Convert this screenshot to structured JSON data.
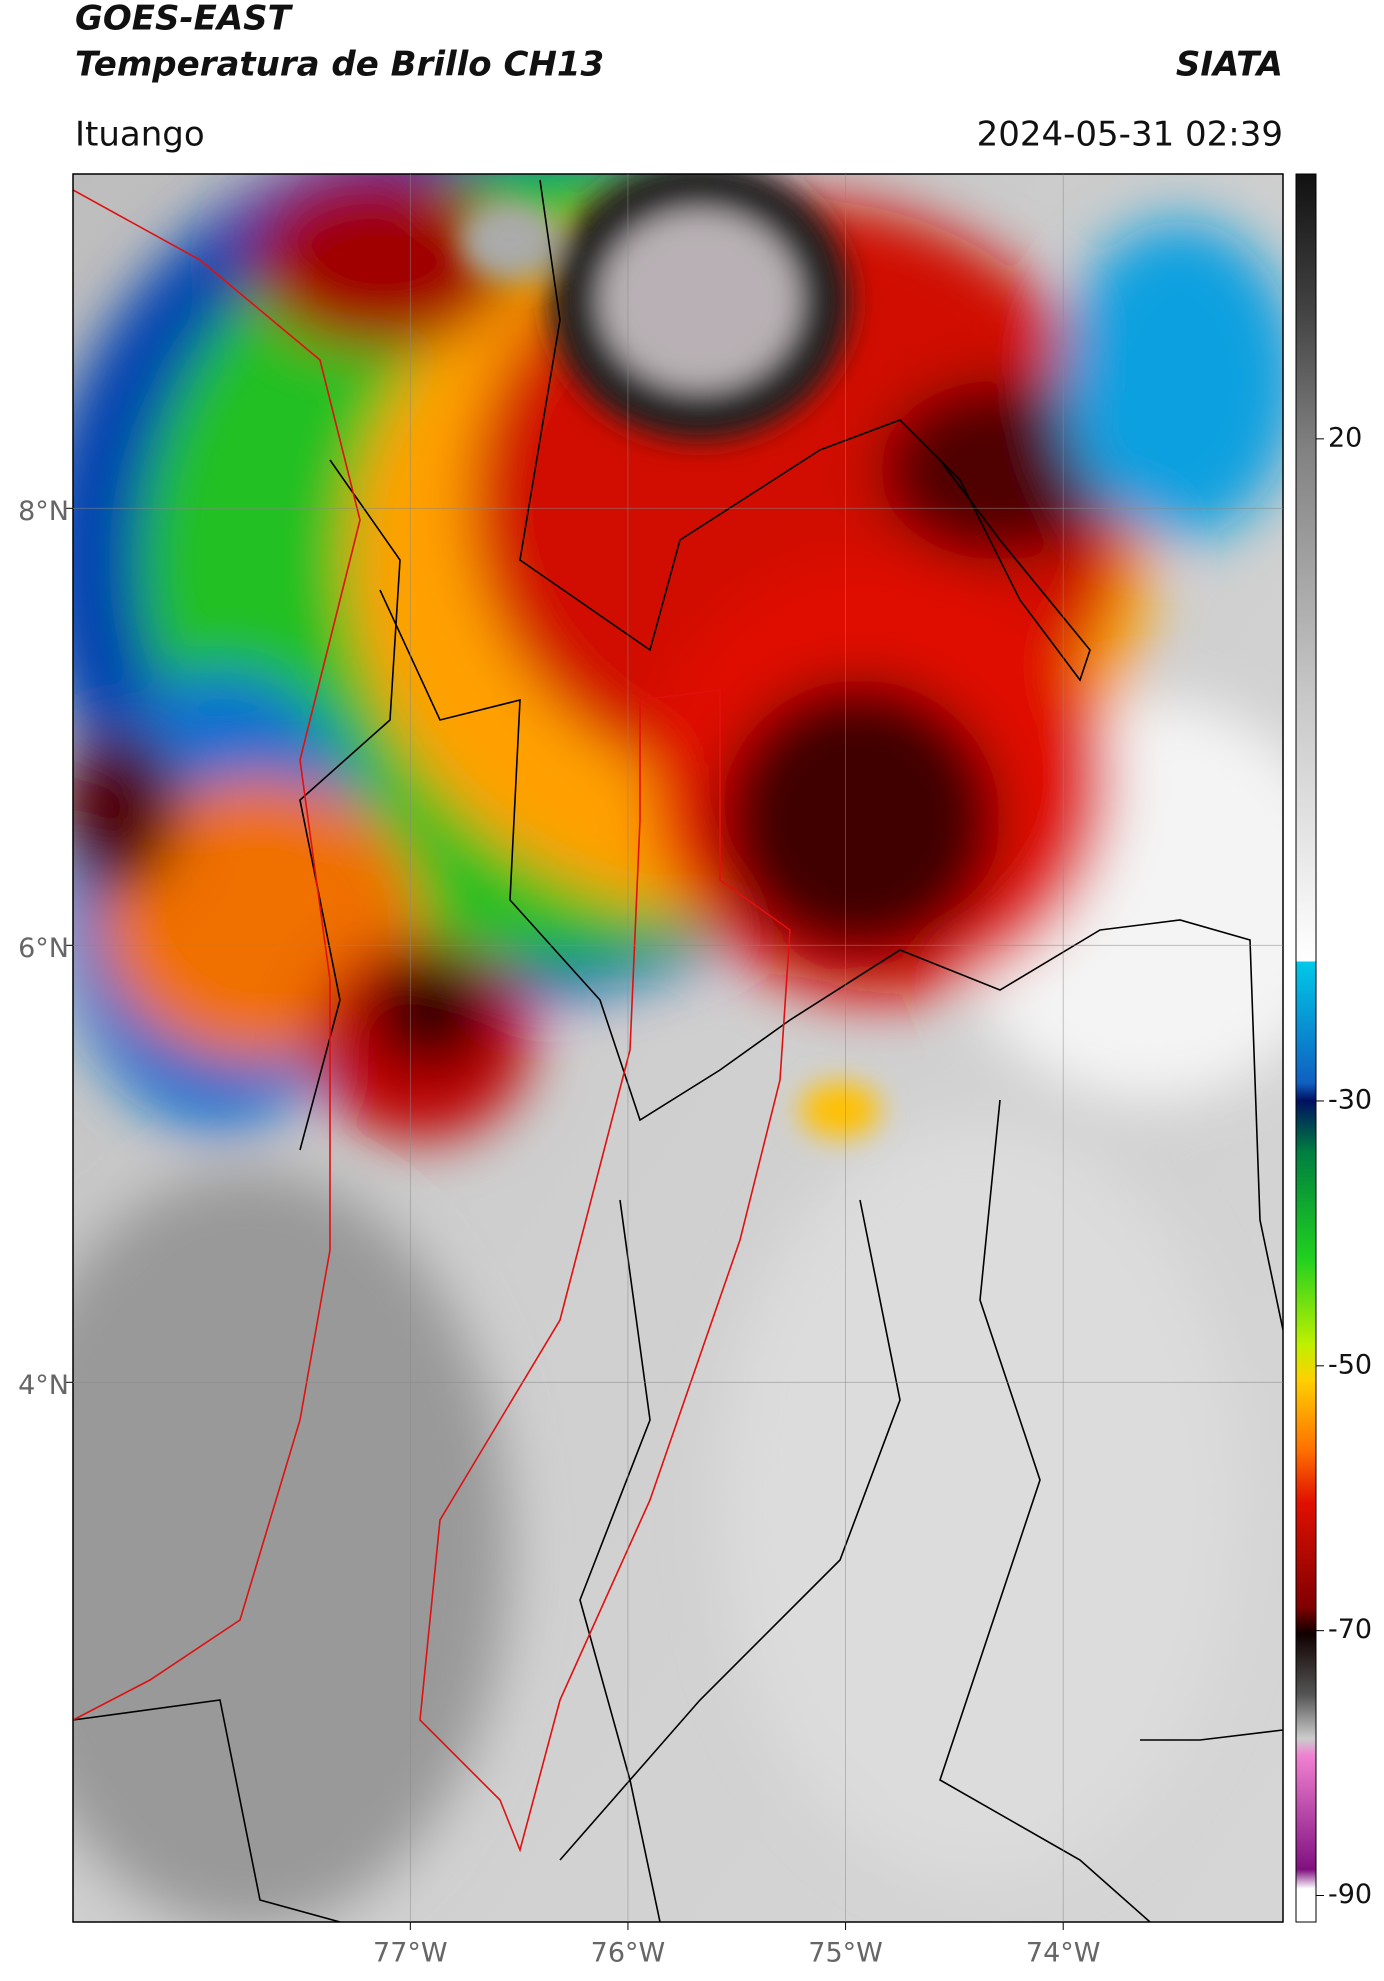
{
  "chart_data": {
    "type": "map",
    "title": "GOES-EAST",
    "subtitle": "Temperatura de Brillo CH13",
    "source": "SIATA",
    "location": "Ituango",
    "datetime": "2024-05-31 02:39",
    "xlim": [
      -78.55,
      -72.99
    ],
    "ylim": [
      1.53,
      9.53
    ],
    "xticks": [
      {
        "value": -77,
        "label": "77°W"
      },
      {
        "value": -76,
        "label": "76°W"
      },
      {
        "value": -75,
        "label": "75°W"
      },
      {
        "value": -74,
        "label": "74°W"
      }
    ],
    "yticks": [
      {
        "value": 8,
        "label": "8°N"
      },
      {
        "value": 6,
        "label": "6°N"
      },
      {
        "value": 4,
        "label": "4°N"
      }
    ],
    "grid": true,
    "colorbar": {
      "lim": [
        -92,
        40
      ],
      "ticks": [
        20,
        -30,
        -50,
        -70,
        -90
      ]
    }
  }
}
